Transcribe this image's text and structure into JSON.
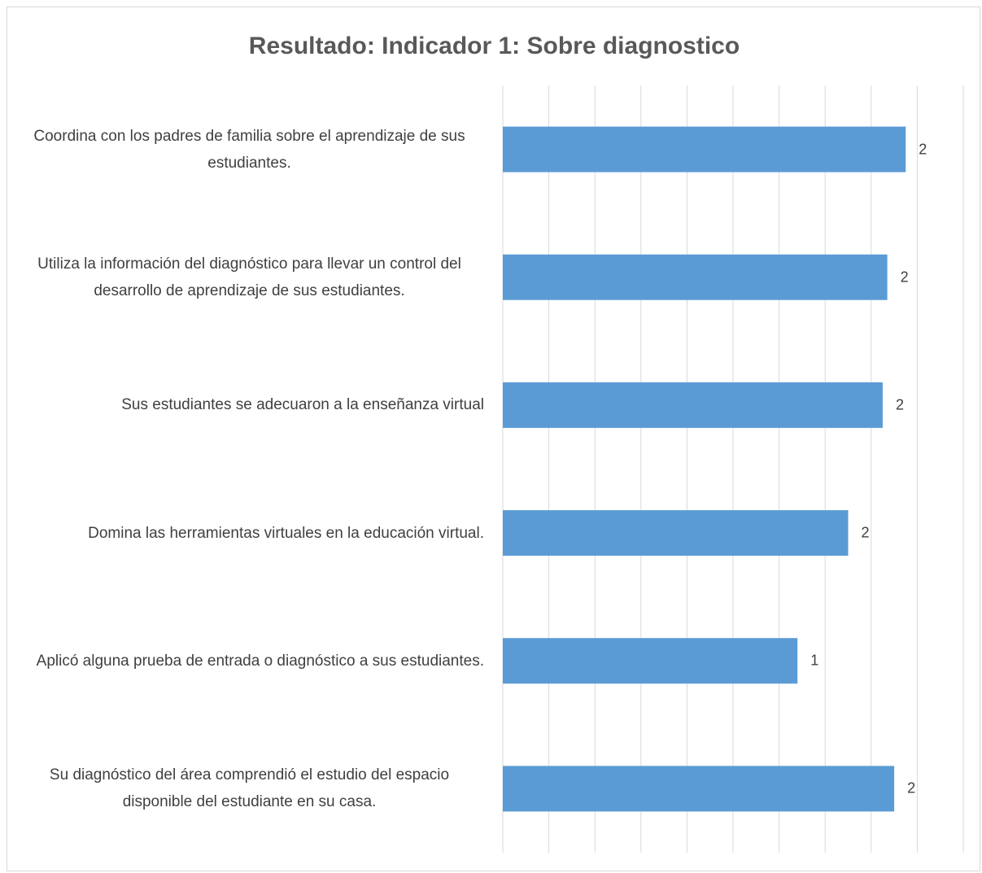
{
  "chart_data": {
    "type": "hbar",
    "title": "Resultado: Indicador 1: Sobre diagnostico",
    "categories": [
      "Coordina con los padres de familia sobre el aprendizaje de sus estudiantes.",
      "Utiliza la información del diagnóstico para llevar un control del desarrollo de aprendizaje de sus estudiantes.",
      "Sus estudiantes se adecuaron a la enseñanza virtual",
      "Domina las herramientas virtuales en la educación virtual.",
      "Aplicó alguna prueba de entrada o diagnóstico a sus estudiantes.",
      "Su diagnóstico del área comprendió el estudio del espacio disponible del estudiante en su casa."
    ],
    "values": [
      1.75,
      1.67,
      1.65,
      1.5,
      1.28,
      1.7
    ],
    "value_labels": [
      "2",
      "2",
      "2",
      "2",
      "1",
      "2"
    ],
    "color": "#5b9bd5",
    "xlim": [
      0,
      2
    ],
    "xticks": [
      0,
      0.2,
      0.4,
      0.6,
      0.8,
      1,
      1.2,
      1.4,
      1.6,
      1.8,
      2
    ],
    "grid": true
  }
}
